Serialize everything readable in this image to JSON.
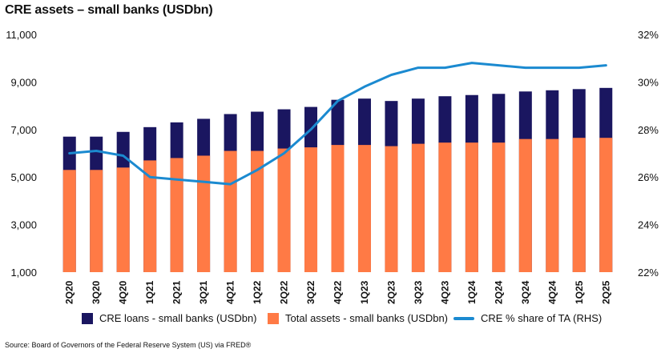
{
  "title": "CRE assets – small banks (USDbn)",
  "source": "Source: Board of Governors of the Federal Reserve System (US) via FRED®",
  "colors": {
    "cre_loans": "#1a1660",
    "total_assets": "#ff7a45",
    "cre_share": "#1b8ad0"
  },
  "legend": {
    "cre_loans": "CRE loans - small banks (USDbn)",
    "total_assets": "Total assets - small banks (USDbn)",
    "cre_share": "CRE % share of TA (RHS)"
  },
  "chart_data": {
    "type": "bar",
    "title": "CRE assets – small banks (USDbn)",
    "categories": [
      "2Q20",
      "3Q20",
      "4Q20",
      "1Q21",
      "2Q21",
      "3Q21",
      "4Q21",
      "1Q22",
      "2Q22",
      "3Q22",
      "4Q22",
      "1Q23",
      "2Q23",
      "3Q23",
      "4Q23",
      "1Q24",
      "2Q24",
      "3Q24",
      "4Q24",
      "1Q25",
      "2Q25"
    ],
    "ylim": [
      1000,
      11000
    ],
    "yticks": [
      1000,
      3000,
      5000,
      7000,
      9000,
      11000
    ],
    "ytick_labels": [
      "1,000",
      "3,000",
      "5,000",
      "7,000",
      "9,000",
      "11,000"
    ],
    "y2lim": [
      22,
      32
    ],
    "y2ticks": [
      22,
      24,
      26,
      28,
      30,
      32
    ],
    "y2tick_labels": [
      "22%",
      "24%",
      "26%",
      "28%",
      "30%",
      "32%"
    ],
    "series": [
      {
        "name": "CRE loans - small banks (USDbn)",
        "type": "bar",
        "axis": "left",
        "values": [
          6700,
          6700,
          6900,
          7100,
          7300,
          7450,
          7650,
          7750,
          7850,
          7950,
          8250,
          8300,
          8200,
          8300,
          8400,
          8450,
          8500,
          8600,
          8650,
          8700,
          8750
        ]
      },
      {
        "name": "Total assets - small banks (USDbn)",
        "type": "bar",
        "axis": "left",
        "values": [
          5300,
          5300,
          5400,
          5700,
          5800,
          5900,
          6100,
          6100,
          6200,
          6250,
          6350,
          6350,
          6300,
          6400,
          6450,
          6450,
          6450,
          6600,
          6600,
          6650,
          6650
        ]
      },
      {
        "name": "CRE % share of TA (RHS)",
        "type": "line",
        "axis": "right",
        "values": [
          27.0,
          27.1,
          26.9,
          26.0,
          25.9,
          25.8,
          25.7,
          26.3,
          27.0,
          28.0,
          29.2,
          29.8,
          30.3,
          30.6,
          30.6,
          30.8,
          30.7,
          30.6,
          30.6,
          30.6,
          30.7
        ]
      }
    ],
    "legend_position": "bottom"
  }
}
